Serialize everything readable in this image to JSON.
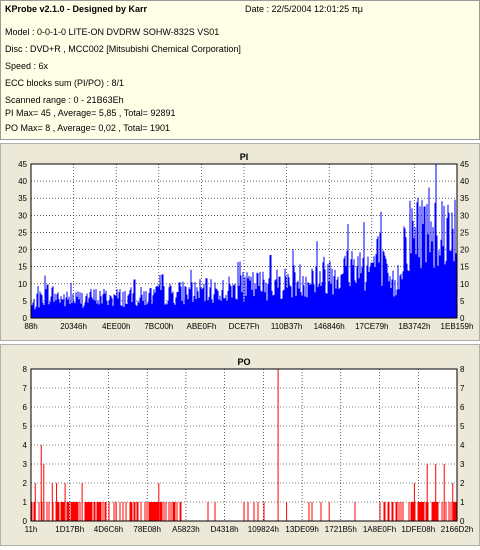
{
  "header": {
    "title": "KProbe v2.1.0 - Designed by Karr",
    "date": "Date : 22/5/2004 12:01:25 πμ"
  },
  "info_lines": [
    "Model : 0-0-1-0 LITE-ON DVDRW SOHW-832S  VS01",
    "Disc : DVD+R , MCC002 [Mitsubishi Chemical Corporation]",
    "Speed : 6x",
    "ECC blocks sum (PI/PO) : 8/1",
    "Scanned range : 0 - 21B63Eh",
    "PI Max= 45 , Average= 5,85 , Total= 92891",
    "PO Max= 8 , Average= 0,02 , Total= 1901"
  ],
  "chart_data": [
    {
      "type": "bar",
      "title": "PI",
      "ylim": [
        0,
        45
      ],
      "yticks": [
        0,
        5,
        10,
        15,
        20,
        25,
        30,
        35,
        40,
        45
      ],
      "xtick_labels": [
        "88h",
        "20346h",
        "4EE00h",
        "7BC00h",
        "ABE0Fh",
        "DCE7Fh",
        "110B37h",
        "146846h",
        "17CE79h",
        "1B3742h",
        "1EB159h"
      ],
      "grid": true,
      "color": "#0000ff",
      "envelope": [
        [
          0,
          5
        ],
        [
          0.02,
          8
        ],
        [
          0.04,
          11
        ],
        [
          0.08,
          8
        ],
        [
          0.15,
          9
        ],
        [
          0.25,
          9
        ],
        [
          0.35,
          11
        ],
        [
          0.45,
          12
        ],
        [
          0.52,
          14
        ],
        [
          0.58,
          15
        ],
        [
          0.65,
          17
        ],
        [
          0.72,
          20
        ],
        [
          0.76,
          23
        ],
        [
          0.8,
          22
        ],
        [
          0.82,
          27
        ],
        [
          0.84,
          15
        ],
        [
          0.86,
          14
        ],
        [
          0.88,
          35
        ],
        [
          0.92,
          40
        ],
        [
          0.95,
          42
        ],
        [
          0.97,
          38
        ],
        [
          1,
          44
        ]
      ]
    },
    {
      "type": "bar",
      "title": "PO",
      "ylim": [
        0,
        8
      ],
      "yticks": [
        0,
        1,
        2,
        3,
        4,
        5,
        6,
        7,
        8
      ],
      "xtick_labels": [
        "11h",
        "1D17Bh",
        "4D6C6h",
        "78E08h",
        "A5823h",
        "D4318h",
        "109824h",
        "13DE09h",
        "1721B5h",
        "1A8E0Fh",
        "1DFE08h",
        "2166D2h"
      ],
      "grid": true,
      "color": "#ff0000",
      "spikes": [
        [
          0.024,
          4
        ],
        [
          0.03,
          3
        ],
        [
          0.01,
          2
        ],
        [
          0.05,
          2
        ],
        [
          0.06,
          2
        ],
        [
          0.08,
          2
        ],
        [
          0.12,
          2
        ],
        [
          0.2,
          1
        ],
        [
          0.3,
          2
        ],
        [
          0.35,
          1
        ],
        [
          0.5,
          1
        ],
        [
          0.58,
          8
        ],
        [
          0.6,
          1
        ],
        [
          0.7,
          1
        ],
        [
          0.84,
          1
        ],
        [
          0.9,
          2
        ],
        [
          0.93,
          3
        ],
        [
          0.95,
          3
        ],
        [
          0.97,
          3
        ],
        [
          0.99,
          2
        ]
      ]
    }
  ]
}
